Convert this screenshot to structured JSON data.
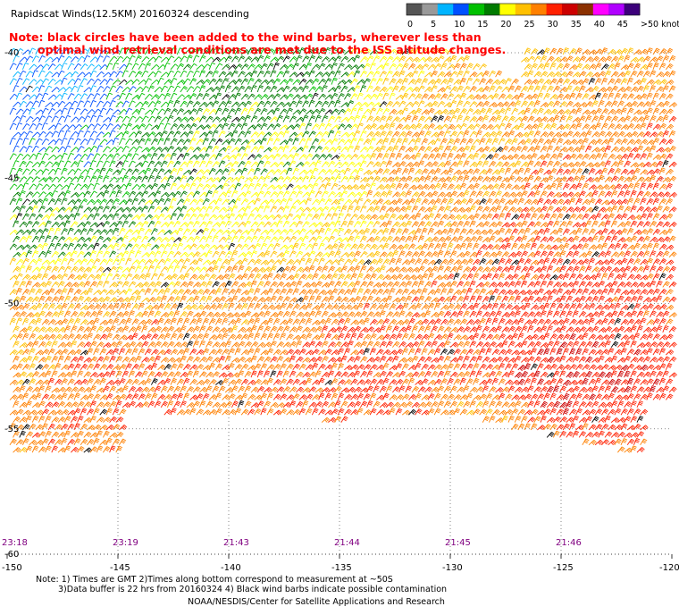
{
  "chart_data": {
    "type": "wind-barb-map",
    "title": "Rapidscat Winds(12.5KM) 20160324 descending",
    "note_line1": "Note: black circles have been added to the wind barbs, wherever less than",
    "note_line2": "optimal wind retrieval conditions are met due to the ISS altitude changes.",
    "colorbar": {
      "unit": "knots",
      "ticks": [
        "0",
        "5",
        "10",
        "15",
        "20",
        "25",
        "30",
        "35",
        "40",
        "45",
        ">50 knots"
      ],
      "colors": [
        "#555555",
        "#999999",
        "#00b4ff",
        "#0050ff",
        "#00c000",
        "#007a00",
        "#ffff00",
        "#ffc000",
        "#ff8000",
        "#ff2000",
        "#cc0000",
        "#8b3000",
        "#ff00ff",
        "#b000ff",
        "#3c007a"
      ]
    },
    "x_axis": {
      "range": [
        -150,
        -120
      ],
      "ticks": [
        -150,
        -145,
        -140,
        -135,
        -130,
        -125,
        -120
      ],
      "tick_labels": [
        "-150",
        "-145",
        "-140",
        "-135",
        "-130",
        "-125",
        "-120"
      ]
    },
    "y_axis": {
      "range": [
        -60,
        -40
      ],
      "labels": [
        {
          "lat": -40,
          "text": "-40"
        },
        {
          "lat": -45,
          "text": "-45"
        },
        {
          "lat": -50,
          "text": "-50"
        },
        {
          "lat": -55,
          "text": "-55"
        },
        {
          "lat": -60,
          "text": "-60"
        }
      ]
    },
    "grid": true,
    "time_labels": [
      {
        "lon": -150,
        "text": "23:18"
      },
      {
        "lon": -145,
        "text": "23:19"
      },
      {
        "lon": -140,
        "text": "21:43"
      },
      {
        "lon": -135,
        "text": "21:44"
      },
      {
        "lon": -130,
        "text": "21:45"
      },
      {
        "lon": -125,
        "text": "21:46"
      }
    ],
    "speed_field_knots": [
      {
        "lat": -41,
        "lon": -148,
        "speed": 8
      },
      {
        "lat": -41,
        "lon": -143,
        "speed": 14
      },
      {
        "lat": -41,
        "lon": -138,
        "speed": 17
      },
      {
        "lat": -43,
        "lon": -148,
        "speed": 10
      },
      {
        "lat": -43,
        "lon": -140,
        "speed": 19
      },
      {
        "lat": -43,
        "lon": -130,
        "speed": 26
      },
      {
        "lat": -45,
        "lon": -148,
        "speed": 14
      },
      {
        "lat": -45,
        "lon": -140,
        "speed": 21
      },
      {
        "lat": -45,
        "lon": -130,
        "speed": 28
      },
      {
        "lat": -47,
        "lon": -148,
        "speed": 19
      },
      {
        "lat": -47,
        "lon": -138,
        "speed": 23
      },
      {
        "lat": -47,
        "lon": -125,
        "speed": 31
      },
      {
        "lat": -50,
        "lon": -148,
        "speed": 27
      },
      {
        "lat": -50,
        "lon": -138,
        "speed": 29
      },
      {
        "lat": -50,
        "lon": -125,
        "speed": 33
      },
      {
        "lat": -53,
        "lon": -145,
        "speed": 31
      },
      {
        "lat": -53,
        "lon": -135,
        "speed": 32
      },
      {
        "lat": -53,
        "lon": -125,
        "speed": 34
      },
      {
        "lat": -56,
        "lon": -138,
        "speed": 30
      },
      {
        "lat": -56,
        "lon": -128,
        "speed": 27
      }
    ],
    "footer_notes_line1": "Note: 1) Times are GMT  2)Times along bottom correspond to measurement at ~50S",
    "footer_notes_line2": "3)Data buffer is 22 hrs from 20160324  4) Black wind barbs indicate possible contamination",
    "credit": "NOAA/NESDIS/Center for Satellite Applications and Research"
  }
}
